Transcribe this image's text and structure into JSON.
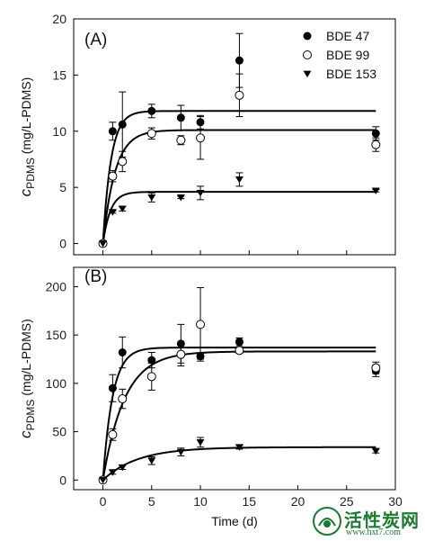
{
  "chart_data": [
    {
      "type": "scatter",
      "panel_label": "(A)",
      "ylabel": {
        "main": "c",
        "sub": "PDMS",
        "unit": " (mg/L-PDMS)"
      },
      "xlim": [
        -3,
        30
      ],
      "ylim": [
        -1,
        20
      ],
      "yticks": [
        0,
        5,
        10,
        15,
        20
      ],
      "xticks": [
        0,
        5,
        10,
        15,
        20,
        25,
        30
      ],
      "xtick_labels_shown": false,
      "legend_placement": "top-right",
      "series": [
        {
          "name": "BDE 47",
          "marker": "filled-circle",
          "plateau": 11.8,
          "k": 1.2,
          "x": [
            0,
            1,
            2,
            5,
            8,
            10,
            14,
            28
          ],
          "y": [
            0,
            10.0,
            10.6,
            11.8,
            11.2,
            10.8,
            16.3,
            9.8
          ],
          "err": [
            0,
            0.8,
            2.9,
            0.6,
            1.1,
            0.6,
            2.4,
            0.6
          ]
        },
        {
          "name": "BDE 99",
          "marker": "open-circle",
          "plateau": 10.1,
          "k": 0.8,
          "x": [
            0,
            1,
            2,
            5,
            8,
            10,
            14,
            28
          ],
          "y": [
            0,
            6.0,
            7.3,
            9.8,
            9.2,
            9.4,
            13.2,
            8.8
          ],
          "err": [
            0,
            0.5,
            0.9,
            0.5,
            0.4,
            1.9,
            1.9,
            0.6
          ]
        },
        {
          "name": "BDE 153",
          "marker": "filled-triangle-down",
          "plateau": 4.6,
          "k": 1.3,
          "x": [
            0,
            1,
            2,
            5,
            8,
            10,
            14,
            28
          ],
          "y": [
            0,
            2.8,
            3.1,
            4.1,
            4.1,
            4.5,
            5.7,
            4.7
          ],
          "err": [
            0,
            0.1,
            0.2,
            0.4,
            0.1,
            0.6,
            0.6,
            0.1
          ]
        }
      ]
    },
    {
      "type": "scatter",
      "panel_label": "(B)",
      "ylabel": {
        "main": "c",
        "sub": "PDMS",
        "unit": " (mg/L-PDMS)"
      },
      "xlabel": "Time (d)",
      "xlim": [
        -3,
        30
      ],
      "ylim": [
        -10,
        220
      ],
      "yticks": [
        0,
        50,
        100,
        150,
        200
      ],
      "xticks": [
        0,
        5,
        10,
        15,
        20,
        25,
        30
      ],
      "xtick_labels_shown": true,
      "series": [
        {
          "name": "BDE 47",
          "marker": "filled-circle",
          "plateau": 137,
          "k": 1.0,
          "x": [
            0,
            1,
            2,
            5,
            8,
            10,
            14,
            28
          ],
          "y": [
            0,
            95,
            132,
            124,
            141,
            128,
            143,
            113
          ],
          "err": [
            0,
            14,
            16,
            8,
            20,
            3,
            4,
            6
          ]
        },
        {
          "name": "BDE 99",
          "marker": "open-circle",
          "plateau": 133,
          "k": 0.45,
          "x": [
            0,
            1,
            2,
            5,
            8,
            10,
            14,
            28
          ],
          "y": [
            0,
            47,
            84,
            107,
            130,
            161,
            134,
            116
          ],
          "err": [
            0,
            6,
            10,
            14,
            12,
            38,
            3,
            6
          ]
        },
        {
          "name": "BDE 153",
          "marker": "filled-triangle-down",
          "plateau": 34,
          "k": 0.28,
          "x": [
            0,
            1,
            2,
            5,
            8,
            10,
            14,
            28
          ],
          "y": [
            0,
            8,
            13,
            20,
            29,
            39,
            34,
            30
          ],
          "err": [
            0,
            2,
            2,
            4,
            4,
            5,
            2,
            2
          ]
        }
      ]
    }
  ],
  "watermark": {
    "title": "活性炭网",
    "url": "www.hxt7.com"
  }
}
